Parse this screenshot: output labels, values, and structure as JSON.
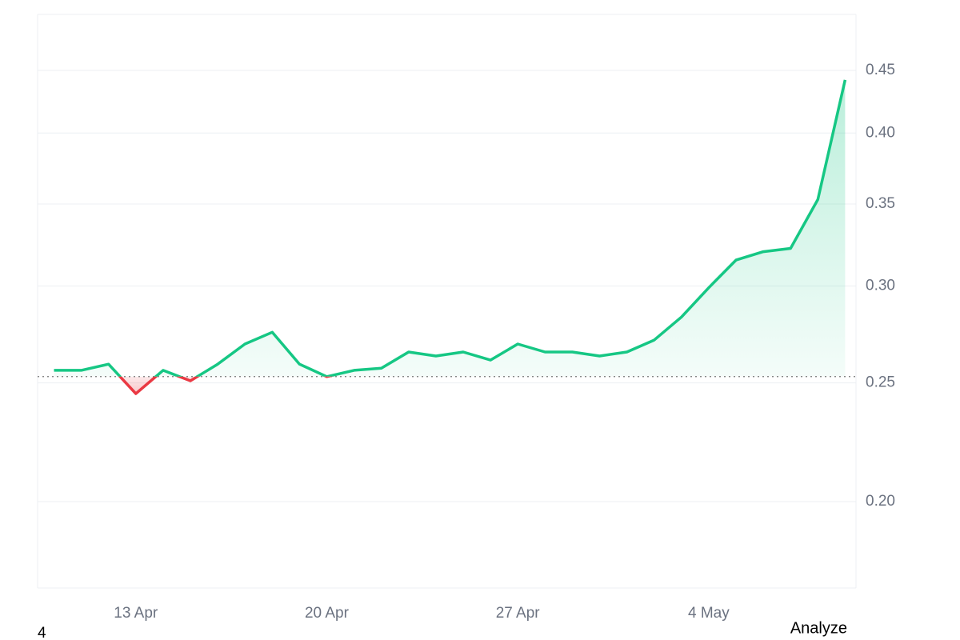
{
  "chart_data": {
    "type": "line",
    "x": [
      "10 Apr",
      "11 Apr",
      "12 Apr",
      "13 Apr",
      "14 Apr",
      "15 Apr",
      "16 Apr",
      "17 Apr",
      "18 Apr",
      "19 Apr",
      "20 Apr",
      "21 Apr",
      "22 Apr",
      "23 Apr",
      "24 Apr",
      "25 Apr",
      "26 Apr",
      "27 Apr",
      "28 Apr",
      "29 Apr",
      "30 Apr",
      "1 May",
      "2 May",
      "3 May",
      "4 May",
      "5 May",
      "6 May",
      "7 May",
      "8 May",
      "9 May"
    ],
    "values": [
      0.256,
      0.256,
      0.259,
      0.245,
      0.256,
      0.251,
      0.259,
      0.269,
      0.275,
      0.259,
      0.253,
      0.256,
      0.257,
      0.265,
      0.263,
      0.265,
      0.261,
      0.269,
      0.265,
      0.265,
      0.263,
      0.265,
      0.271,
      0.283,
      0.299,
      0.315,
      0.32,
      0.322,
      0.353,
      0.442
    ],
    "baseline": 0.253,
    "up_color": "#16c784",
    "down_color": "#ea3943",
    "log_scale": true,
    "ylim": [
      0.17,
      0.5
    ],
    "yticks": [
      {
        "value": 0.2,
        "label": "0.20"
      },
      0.25,
      {
        "value": 0.3,
        "label": "0.30"
      },
      0.35,
      {
        "value": 0.4,
        "label": "0.40"
      },
      0.45
    ],
    "xticks": [
      "13 Apr",
      "20 Apr",
      "27 Apr",
      "4 May"
    ],
    "grid": true
  },
  "footer": {
    "page_number": "4",
    "button": "Analyze"
  }
}
